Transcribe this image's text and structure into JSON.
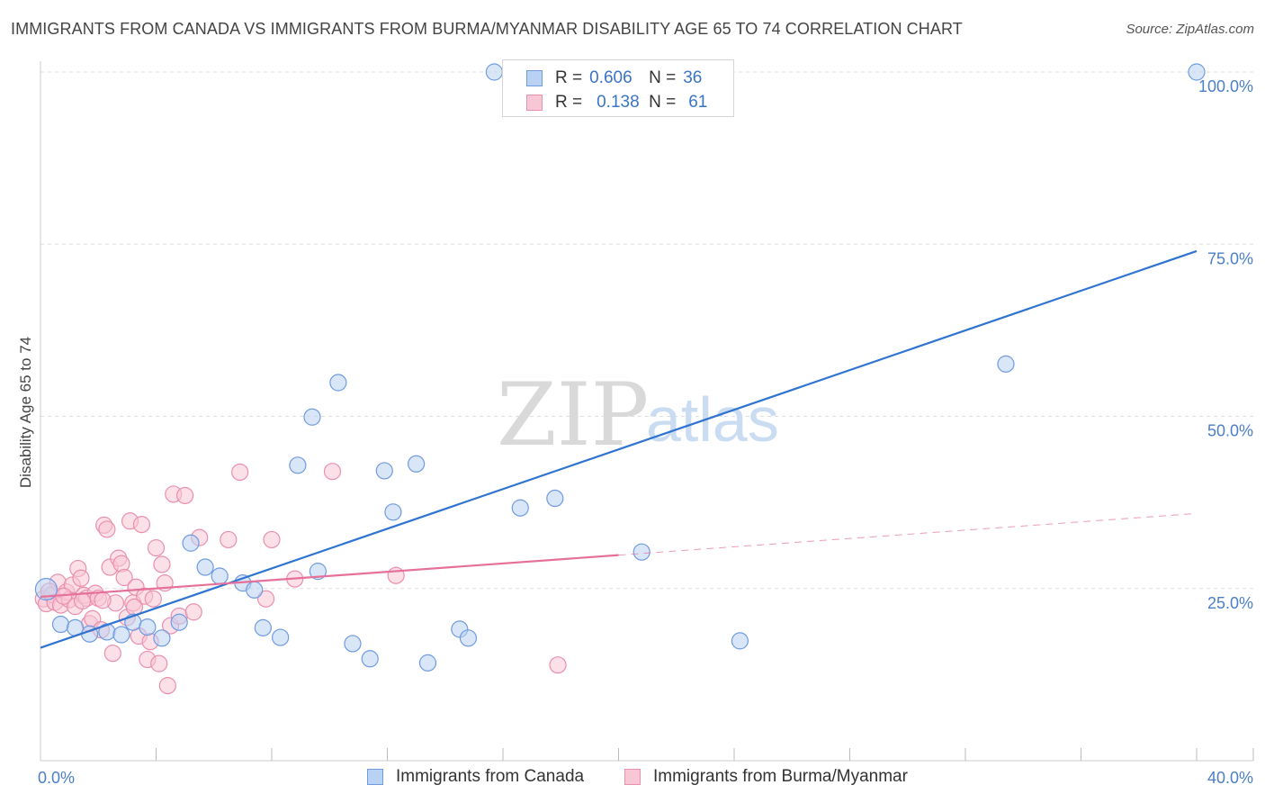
{
  "header": {
    "title": "IMMIGRANTS FROM CANADA VS IMMIGRANTS FROM BURMA/MYANMAR DISABILITY AGE 65 TO 74 CORRELATION CHART",
    "source": "Source: ZipAtlas.com"
  },
  "watermark": {
    "zip": "ZIP",
    "atlas": "atlas"
  },
  "legend": {
    "canada": {
      "r_label": "R =",
      "r_value": "0.606",
      "n_label": "N =",
      "n_value": "36"
    },
    "burma": {
      "r_label": "R =",
      "r_value": "0.138",
      "n_label": "N =",
      "n_value": "61"
    }
  },
  "colors": {
    "canada_fill": "#b9d1f2",
    "canada_stroke": "#6f9be0",
    "canada_line": "#2f74d0",
    "burma_fill": "#f8c7d6",
    "burma_stroke": "#ea8fae",
    "burma_line": "#e5709a",
    "tick_text": "#4a7fc9",
    "grid": "#dddddd"
  },
  "chart_data": {
    "type": "scatter",
    "title": "IMMIGRANTS FROM CANADA VS IMMIGRANTS FROM BURMA/MYANMAR DISABILITY AGE 65 TO 74 CORRELATION CHART",
    "xlabel": "",
    "ylabel": "Disability Age 65 to 74",
    "xlim": [
      0,
      40
    ],
    "ylim": [
      0,
      100
    ],
    "x_tick_labels": [
      "0.0%",
      "40.0%"
    ],
    "y_ticks": [
      {
        "value": 25,
        "label": "25.0%"
      },
      {
        "value": 50,
        "label": "50.0%"
      },
      {
        "value": 75,
        "label": "75.0%"
      },
      {
        "value": 100,
        "label": "100.0%"
      }
    ],
    "grid": true,
    "legend_position": "bottom-center",
    "series": [
      {
        "name": "Immigrants from Canada",
        "r": 0.606,
        "n": 36,
        "trend": {
          "x0": 0,
          "y0": 16.4,
          "x1": 40,
          "y1": 74.0,
          "solid_to": 40
        },
        "points": [
          [
            0.2,
            24.9
          ],
          [
            0.7,
            19.8
          ],
          [
            1.7,
            18.4
          ],
          [
            2.3,
            18.7
          ],
          [
            2.8,
            18.3
          ],
          [
            3.2,
            20.1
          ],
          [
            3.7,
            19.4
          ],
          [
            4.2,
            17.8
          ],
          [
            4.8,
            20.1
          ],
          [
            5.2,
            31.6
          ],
          [
            5.7,
            28.1
          ],
          [
            6.2,
            26.8
          ],
          [
            7.0,
            25.8
          ],
          [
            7.4,
            24.8
          ],
          [
            7.7,
            19.3
          ],
          [
            8.3,
            17.9
          ],
          [
            8.9,
            42.9
          ],
          [
            9.4,
            49.9
          ],
          [
            9.6,
            27.5
          ],
          [
            10.3,
            54.9
          ],
          [
            10.8,
            17.0
          ],
          [
            11.4,
            14.8
          ],
          [
            11.9,
            42.1
          ],
          [
            12.2,
            36.1
          ],
          [
            13.0,
            43.1
          ],
          [
            13.4,
            14.2
          ],
          [
            14.5,
            19.1
          ],
          [
            14.8,
            17.8
          ],
          [
            15.7,
            100.0
          ],
          [
            16.6,
            36.7
          ],
          [
            17.8,
            38.1
          ],
          [
            20.8,
            30.3
          ],
          [
            24.2,
            17.4
          ],
          [
            33.4,
            57.6
          ],
          [
            40.0,
            100.0
          ],
          [
            1.2,
            19.3
          ]
        ]
      },
      {
        "name": "Immigrants from Burma/Myanmar",
        "r": 0.138,
        "n": 61,
        "trend": {
          "x0": 0,
          "y0": 23.8,
          "x1": 40,
          "y1": 35.9,
          "solid_to": 20
        },
        "points": [
          [
            0.1,
            23.5
          ],
          [
            0.2,
            22.8
          ],
          [
            0.4,
            24.1
          ],
          [
            0.5,
            23.0
          ],
          [
            0.6,
            25.9
          ],
          [
            0.7,
            22.6
          ],
          [
            0.9,
            24.5
          ],
          [
            1.0,
            23.4
          ],
          [
            1.1,
            25.5
          ],
          [
            1.2,
            22.4
          ],
          [
            1.3,
            27.9
          ],
          [
            1.4,
            26.5
          ],
          [
            1.5,
            24.0
          ],
          [
            1.6,
            23.6
          ],
          [
            1.7,
            19.9
          ],
          [
            1.8,
            20.6
          ],
          [
            1.9,
            24.3
          ],
          [
            2.0,
            23.6
          ],
          [
            2.1,
            19.0
          ],
          [
            2.2,
            34.2
          ],
          [
            2.3,
            33.6
          ],
          [
            2.4,
            28.1
          ],
          [
            2.5,
            15.6
          ],
          [
            2.6,
            22.9
          ],
          [
            2.7,
            29.4
          ],
          [
            2.8,
            28.6
          ],
          [
            2.9,
            26.6
          ],
          [
            3.0,
            20.8
          ],
          [
            3.1,
            34.8
          ],
          [
            3.2,
            22.9
          ],
          [
            3.3,
            25.2
          ],
          [
            3.4,
            18.1
          ],
          [
            3.5,
            34.3
          ],
          [
            3.6,
            23.9
          ],
          [
            3.7,
            14.7
          ],
          [
            3.8,
            17.3
          ],
          [
            3.9,
            23.5
          ],
          [
            4.0,
            30.9
          ],
          [
            4.1,
            14.1
          ],
          [
            4.2,
            28.5
          ],
          [
            4.3,
            25.8
          ],
          [
            4.4,
            10.9
          ],
          [
            4.5,
            19.6
          ],
          [
            4.6,
            38.7
          ],
          [
            4.8,
            21.0
          ],
          [
            5.0,
            38.5
          ],
          [
            5.3,
            21.6
          ],
          [
            5.5,
            32.4
          ],
          [
            6.5,
            32.1
          ],
          [
            6.9,
            41.9
          ],
          [
            7.8,
            23.5
          ],
          [
            8.0,
            32.1
          ],
          [
            8.8,
            26.4
          ],
          [
            10.1,
            42.0
          ],
          [
            12.3,
            26.9
          ],
          [
            17.9,
            13.9
          ],
          [
            0.3,
            24.6
          ],
          [
            0.8,
            23.9
          ],
          [
            1.45,
            23.2
          ],
          [
            2.15,
            23.3
          ],
          [
            3.25,
            22.3
          ]
        ]
      }
    ]
  },
  "bottom_legend": {
    "canada_label": "Immigrants from Canada",
    "burma_label": "Immigrants from Burma/Myanmar"
  }
}
